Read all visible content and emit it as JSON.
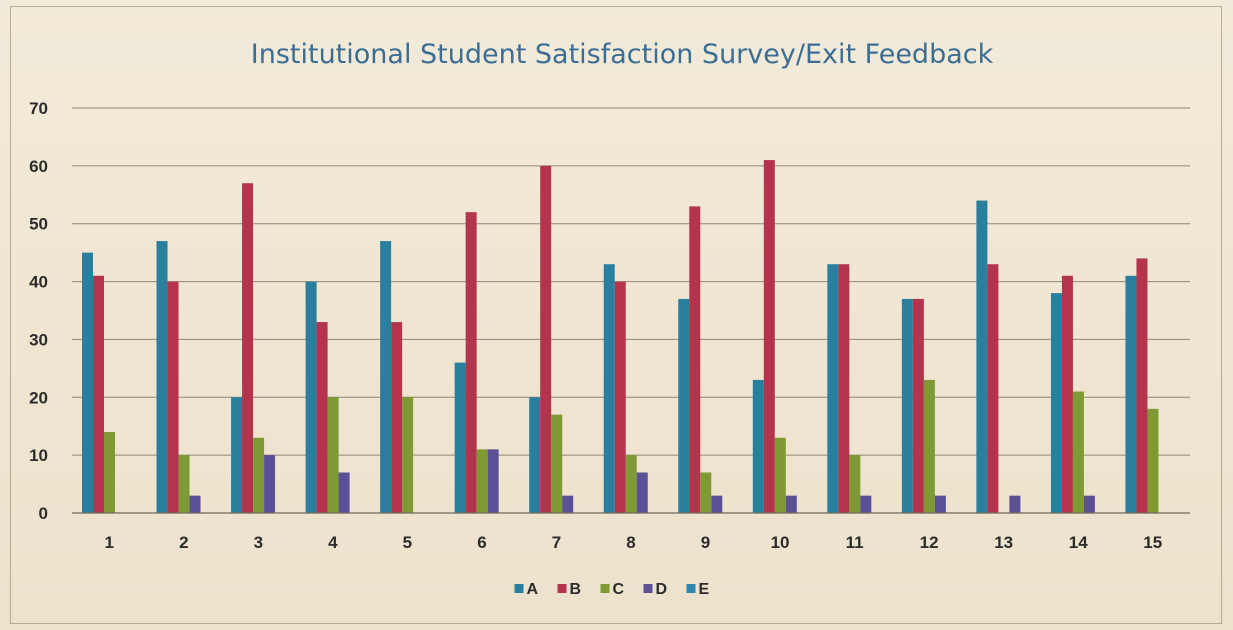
{
  "chart_data": {
    "type": "bar",
    "title": "Institutional Student Satisfaction Survey/Exit Feedback",
    "xlabel": "",
    "ylabel": "",
    "ylim": [
      0,
      70
    ],
    "yticks": [
      0,
      10,
      20,
      30,
      40,
      50,
      60,
      70
    ],
    "grid": true,
    "legend_position": "bottom",
    "categories": [
      "1",
      "2",
      "3",
      "4",
      "5",
      "6",
      "7",
      "8",
      "9",
      "10",
      "11",
      "12",
      "13",
      "14",
      "15"
    ],
    "series": [
      {
        "name": "A",
        "color": "#2b7f9e",
        "values": [
          45,
          47,
          20,
          40,
          47,
          26,
          20,
          43,
          37,
          23,
          43,
          37,
          54,
          38,
          41
        ]
      },
      {
        "name": "B",
        "color": "#b5344d",
        "values": [
          41,
          40,
          57,
          33,
          33,
          52,
          60,
          40,
          53,
          61,
          43,
          37,
          43,
          41,
          44
        ]
      },
      {
        "name": "C",
        "color": "#7f9a34",
        "values": [
          14,
          10,
          13,
          20,
          20,
          11,
          17,
          10,
          7,
          13,
          10,
          23,
          0,
          21,
          18
        ]
      },
      {
        "name": "D",
        "color": "#5b4f96",
        "values": [
          0,
          3,
          10,
          7,
          0,
          11,
          3,
          7,
          3,
          3,
          3,
          3,
          3,
          3,
          0
        ]
      },
      {
        "name": "E",
        "color": "#2f86ae",
        "values": [
          0,
          0,
          0,
          0,
          0,
          0,
          0,
          0,
          0,
          0,
          0,
          0,
          0,
          0,
          0
        ]
      }
    ]
  }
}
